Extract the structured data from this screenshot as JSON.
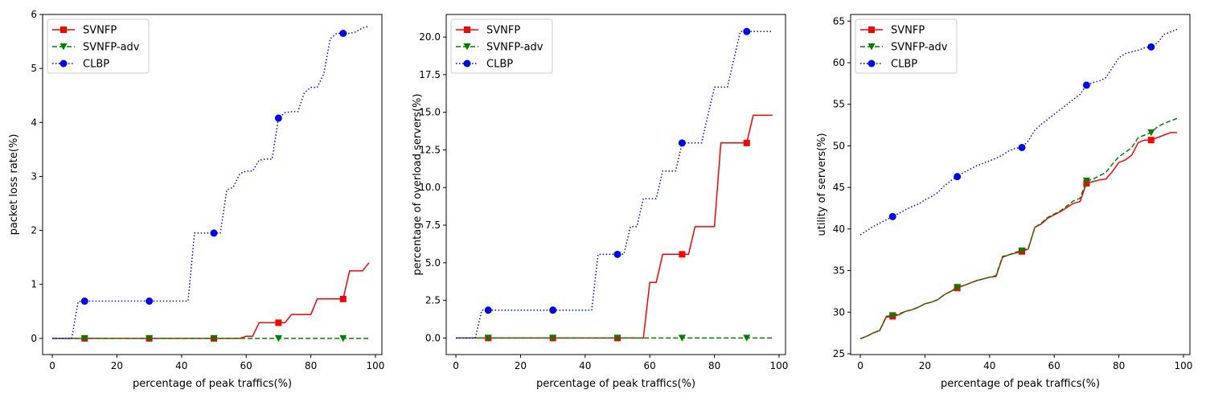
{
  "chart_data": [
    {
      "type": "line",
      "xlabel": "percentage of peak traffics(%)",
      "ylabel": "packet loss rate(%)",
      "xlim": [
        -3,
        102
      ],
      "ylim": [
        -0.3,
        6.0
      ],
      "xticks": [
        0,
        20,
        40,
        60,
        80,
        100
      ],
      "yticks": [
        0,
        1,
        2,
        3,
        4,
        5,
        6
      ],
      "legend_position": "top-left",
      "series": [
        {
          "name": "SVNFP",
          "color": "#ff0000",
          "linestyle": "solid",
          "marker": "square",
          "x": [
            0,
            10,
            20,
            30,
            40,
            50,
            58,
            60,
            62,
            64,
            70,
            72,
            74,
            80,
            82,
            88,
            90,
            92,
            96,
            98
          ],
          "y": [
            0,
            0,
            0,
            0,
            0,
            0,
            0,
            0.04,
            0.04,
            0.29,
            0.29,
            0.29,
            0.44,
            0.44,
            0.73,
            0.73,
            0.73,
            1.25,
            1.25,
            1.4
          ],
          "marker_x": [
            10,
            30,
            50,
            70,
            90
          ],
          "marker_y": [
            0,
            0,
            0,
            0.29,
            0.73
          ]
        },
        {
          "name": "SVNFP-adv",
          "color": "#008000",
          "linestyle": "dashed",
          "marker": "triangle-down",
          "x": [
            0,
            10,
            30,
            50,
            70,
            90,
            98
          ],
          "y": [
            0,
            0,
            0,
            0,
            0,
            0,
            0
          ],
          "marker_x": [
            10,
            30,
            50,
            70,
            90
          ],
          "marker_y": [
            0,
            0,
            0,
            0,
            0
          ]
        },
        {
          "name": "CLBP",
          "color": "#0000ff",
          "linestyle": "dotted",
          "marker": "circle",
          "x": [
            0,
            6,
            8,
            10,
            20,
            30,
            42,
            44,
            50,
            52,
            54,
            56,
            58,
            60,
            62,
            64,
            66,
            68,
            70,
            72,
            74,
            76,
            78,
            80,
            82,
            84,
            86,
            88,
            90,
            92,
            94,
            96,
            98
          ],
          "y": [
            0,
            0,
            0.68,
            0.69,
            0.69,
            0.69,
            0.69,
            1.95,
            1.95,
            1.95,
            2.75,
            2.8,
            3.05,
            3.1,
            3.1,
            3.3,
            3.32,
            3.32,
            4.08,
            4.18,
            4.2,
            4.2,
            4.55,
            4.65,
            4.65,
            4.9,
            5.55,
            5.65,
            5.65,
            5.65,
            5.68,
            5.75,
            5.78
          ],
          "marker_x": [
            10,
            30,
            50,
            70,
            90
          ],
          "marker_y": [
            0.69,
            0.69,
            1.95,
            4.08,
            5.65
          ]
        }
      ]
    },
    {
      "type": "line",
      "xlabel": "percentage of peak traffics(%)",
      "ylabel": "percentage of overload servers(%)",
      "xlim": [
        -3,
        102
      ],
      "ylim": [
        -1.1,
        21.5
      ],
      "xticks": [
        0,
        20,
        40,
        60,
        80,
        100
      ],
      "yticks": [
        0.0,
        2.5,
        5.0,
        7.5,
        10.0,
        12.5,
        15.0,
        17.5,
        20.0
      ],
      "ytick_labels": [
        "0.0",
        "2.5",
        "5.0",
        "7.5",
        "10.0",
        "12.5",
        "15.0",
        "17.5",
        "20.0"
      ],
      "legend_position": "top-left",
      "series": [
        {
          "name": "SVNFP",
          "color": "#ff0000",
          "linestyle": "solid",
          "marker": "square",
          "x": [
            0,
            10,
            30,
            50,
            58,
            60,
            62,
            64,
            70,
            72,
            74,
            80,
            82,
            90,
            92,
            98
          ],
          "y": [
            0,
            0,
            0,
            0,
            0,
            3.7,
            3.7,
            5.56,
            5.56,
            5.56,
            7.4,
            7.4,
            12.96,
            12.96,
            14.8,
            14.8
          ],
          "marker_x": [
            10,
            30,
            50,
            70,
            90
          ],
          "marker_y": [
            0,
            0,
            0,
            5.56,
            12.96
          ]
        },
        {
          "name": "SVNFP-adv",
          "color": "#008000",
          "linestyle": "dashed",
          "marker": "triangle-down",
          "x": [
            0,
            10,
            30,
            50,
            70,
            90,
            98
          ],
          "y": [
            0,
            0,
            0,
            0,
            0,
            0,
            0
          ],
          "marker_x": [
            10,
            30,
            50,
            70,
            90
          ],
          "marker_y": [
            0,
            0,
            0,
            0,
            0
          ]
        },
        {
          "name": "CLBP",
          "color": "#0000ff",
          "linestyle": "dotted",
          "marker": "circle",
          "x": [
            0,
            6,
            8,
            10,
            30,
            42,
            44,
            50,
            52,
            54,
            56,
            58,
            62,
            64,
            66,
            68,
            70,
            72,
            74,
            76,
            78,
            80,
            82,
            84,
            86,
            88,
            90,
            92,
            94,
            96,
            98
          ],
          "y": [
            0,
            0,
            1.85,
            1.85,
            1.85,
            1.85,
            5.56,
            5.56,
            5.56,
            7.4,
            7.4,
            9.26,
            9.26,
            11.1,
            11.1,
            11.1,
            12.96,
            12.96,
            12.96,
            12.96,
            14.8,
            16.67,
            16.67,
            16.67,
            18.5,
            20.37,
            20.37,
            20.37,
            20.37,
            20.37,
            20.37
          ],
          "marker_x": [
            10,
            30,
            50,
            70,
            90
          ],
          "marker_y": [
            1.85,
            1.85,
            5.56,
            12.96,
            20.37
          ]
        }
      ]
    },
    {
      "type": "line",
      "xlabel": "percentage of peak traffics(%)",
      "ylabel": "utility of servers(%)",
      "xlim": [
        -3,
        102
      ],
      "ylim": [
        24.9,
        65.8
      ],
      "xticks": [
        0,
        20,
        40,
        60,
        80,
        100
      ],
      "yticks": [
        25,
        30,
        35,
        40,
        45,
        50,
        55,
        60,
        65
      ],
      "legend_position": "top-left",
      "series": [
        {
          "name": "SVNFP",
          "color": "#ff0000",
          "linestyle": "solid",
          "marker": "square",
          "x": [
            0,
            2,
            4,
            6,
            8,
            10,
            12,
            14,
            16,
            18,
            20,
            22,
            24,
            26,
            28,
            30,
            32,
            34,
            36,
            38,
            40,
            42,
            44,
            46,
            48,
            50,
            52,
            54,
            56,
            58,
            60,
            62,
            64,
            66,
            68,
            70,
            72,
            74,
            76,
            78,
            80,
            82,
            84,
            86,
            88,
            90,
            92,
            94,
            96,
            98
          ],
          "y": [
            26.8,
            27.1,
            27.5,
            27.8,
            29.4,
            29.5,
            29.7,
            30.1,
            30.3,
            30.6,
            31.0,
            31.2,
            31.5,
            32.1,
            32.5,
            32.9,
            33.2,
            33.5,
            33.8,
            34.0,
            34.2,
            34.3,
            36.6,
            36.9,
            37.1,
            37.3,
            37.6,
            40.2,
            40.6,
            41.3,
            41.7,
            42.1,
            42.6,
            43.1,
            43.3,
            45.5,
            45.7,
            45.9,
            46.0,
            46.9,
            48.0,
            48.3,
            48.9,
            50.4,
            50.7,
            50.7,
            51.0,
            51.3,
            51.6,
            51.6
          ],
          "marker_x": [
            10,
            30,
            50,
            70,
            90
          ],
          "marker_y": [
            29.5,
            32.9,
            37.3,
            45.5,
            50.7
          ]
        },
        {
          "name": "SVNFP-adv",
          "color": "#008000",
          "linestyle": "dashed",
          "marker": "triangle-down",
          "x": [
            0,
            2,
            4,
            6,
            8,
            10,
            12,
            14,
            16,
            18,
            20,
            22,
            24,
            26,
            28,
            30,
            32,
            34,
            36,
            38,
            40,
            42,
            44,
            46,
            48,
            50,
            52,
            54,
            56,
            58,
            60,
            62,
            64,
            66,
            68,
            70,
            72,
            74,
            76,
            78,
            80,
            82,
            84,
            86,
            88,
            90,
            92,
            94,
            96,
            98
          ],
          "y": [
            26.8,
            27.1,
            27.5,
            27.8,
            29.5,
            29.6,
            29.8,
            30.1,
            30.3,
            30.6,
            31.0,
            31.2,
            31.5,
            32.1,
            32.5,
            33.0,
            33.2,
            33.5,
            33.8,
            34.0,
            34.2,
            34.4,
            36.7,
            36.9,
            37.2,
            37.4,
            37.7,
            40.2,
            40.7,
            41.4,
            41.8,
            42.2,
            42.8,
            43.4,
            43.7,
            45.8,
            46.0,
            46.4,
            46.8,
            47.8,
            48.7,
            49.2,
            49.8,
            51.0,
            51.3,
            51.6,
            52.3,
            52.7,
            53.0,
            53.3
          ],
          "marker_x": [
            10,
            30,
            50,
            70,
            90
          ],
          "marker_y": [
            29.6,
            33.0,
            37.4,
            45.8,
            51.6
          ]
        },
        {
          "name": "CLBP",
          "color": "#0000ff",
          "linestyle": "dotted",
          "marker": "circle",
          "x": [
            0,
            2,
            4,
            6,
            8,
            10,
            12,
            14,
            16,
            18,
            20,
            22,
            24,
            26,
            28,
            30,
            32,
            34,
            36,
            38,
            40,
            42,
            44,
            46,
            48,
            50,
            52,
            54,
            56,
            58,
            60,
            62,
            64,
            66,
            68,
            70,
            72,
            74,
            76,
            78,
            80,
            82,
            84,
            86,
            88,
            90,
            92,
            94,
            96,
            98
          ],
          "y": [
            39.3,
            39.8,
            40.3,
            40.7,
            41.1,
            41.5,
            41.9,
            42.3,
            42.7,
            43.0,
            43.5,
            43.9,
            44.4,
            45.2,
            45.8,
            46.3,
            46.8,
            47.2,
            47.6,
            47.9,
            48.2,
            48.5,
            48.9,
            49.4,
            49.7,
            49.8,
            50.6,
            51.9,
            52.6,
            53.2,
            53.8,
            54.4,
            55.0,
            55.6,
            56.2,
            57.3,
            57.6,
            57.8,
            58.2,
            59.4,
            60.6,
            61.1,
            61.3,
            61.5,
            61.8,
            61.9,
            62.4,
            63.4,
            63.7,
            64.0
          ],
          "marker_x": [
            10,
            30,
            50,
            70,
            90
          ],
          "marker_y": [
            41.5,
            46.3,
            49.8,
            57.3,
            61.9
          ]
        }
      ]
    }
  ]
}
